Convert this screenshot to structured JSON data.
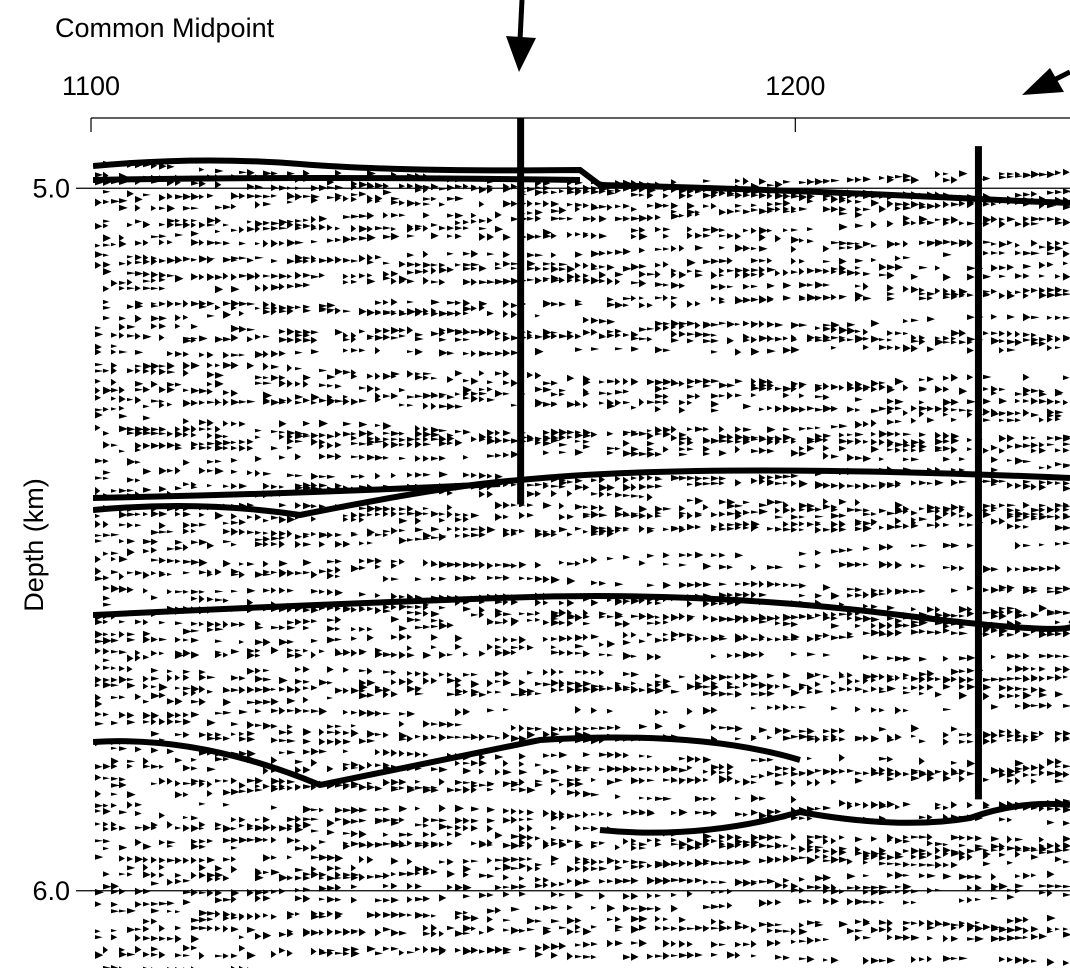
{
  "chart_data": {
    "type": "seismic",
    "title": "Common Midpoint",
    "y_label": "Depth (km)",
    "xlim": [
      1100,
      1239
    ],
    "ylim": [
      4.9,
      6.11
    ],
    "xticks": [
      1100,
      1200
    ],
    "yticks": [
      {
        "value": 5,
        "label": "5.0"
      },
      {
        "value": 6,
        "label": "6.0"
      }
    ],
    "lines": [
      {
        "x": 1161,
        "y": [
          4.9,
          5.45
        ]
      },
      {
        "x": 1226,
        "y": [
          4.94,
          5.87
        ]
      }
    ]
  }
}
